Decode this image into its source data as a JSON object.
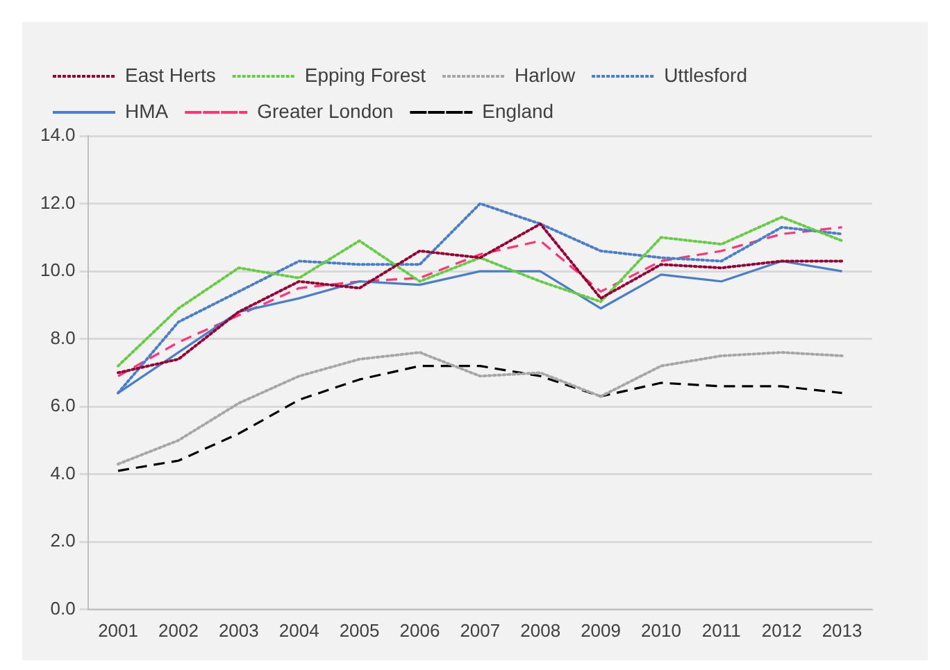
{
  "chart_data": {
    "type": "line",
    "categories": [
      "2001",
      "2002",
      "2003",
      "2004",
      "2005",
      "2006",
      "2007",
      "2008",
      "2009",
      "2010",
      "2011",
      "2012",
      "2013"
    ],
    "series": [
      {
        "name": "East Herts",
        "color": "#990033",
        "line_style": "dotted",
        "values": [
          7.0,
          7.4,
          8.8,
          9.7,
          9.5,
          10.6,
          10.4,
          11.4,
          9.2,
          10.2,
          10.1,
          10.3,
          10.3
        ]
      },
      {
        "name": "Epping Forest",
        "color": "#66cc44",
        "line_style": "dotted",
        "values": [
          7.2,
          8.9,
          10.1,
          9.8,
          10.9,
          9.7,
          10.4,
          9.7,
          9.1,
          11.0,
          10.8,
          11.6,
          10.9
        ]
      },
      {
        "name": "Harlow",
        "color": "#a6a6a6",
        "line_style": "dotted",
        "values": [
          4.3,
          5.0,
          6.1,
          6.9,
          7.4,
          7.6,
          6.9,
          7.0,
          6.3,
          7.2,
          7.5,
          7.6,
          7.5
        ]
      },
      {
        "name": "Uttlesford",
        "color": "#4a7ec8",
        "line_style": "dotted",
        "values": [
          6.4,
          8.5,
          9.4,
          10.3,
          10.2,
          10.2,
          12.0,
          11.4,
          10.6,
          10.4,
          10.3,
          11.3,
          11.1
        ]
      },
      {
        "name": "HMA",
        "color": "#4a7ec8",
        "line_style": "solid",
        "values": [
          6.4,
          7.6,
          8.8,
          9.2,
          9.7,
          9.6,
          10.0,
          10.0,
          8.9,
          9.9,
          9.7,
          10.3,
          10.0
        ]
      },
      {
        "name": "Greater London",
        "color": "#ff3377",
        "line_style": "dashed",
        "values": [
          6.9,
          7.9,
          8.7,
          9.5,
          9.7,
          9.8,
          10.5,
          10.9,
          9.4,
          10.3,
          10.6,
          11.1,
          11.3
        ]
      },
      {
        "name": "England",
        "color": "#000000",
        "line_style": "dashed",
        "values": [
          4.1,
          4.4,
          5.2,
          6.2,
          6.8,
          7.2,
          7.2,
          6.9,
          6.3,
          6.7,
          6.6,
          6.6,
          6.4
        ]
      }
    ],
    "ylim": [
      0,
      14
    ],
    "yticks": [
      {
        "value": 0,
        "label": "0.0"
      },
      {
        "value": 2,
        "label": "2.0"
      },
      {
        "value": 4,
        "label": "4.0"
      },
      {
        "value": 6,
        "label": "6.0"
      },
      {
        "value": 8,
        "label": "8.0"
      },
      {
        "value": 10,
        "label": "10.0"
      },
      {
        "value": 12,
        "label": "12.0"
      },
      {
        "value": 14,
        "label": "14.0"
      }
    ],
    "grid": "y",
    "legend": "top",
    "marker": "none"
  }
}
